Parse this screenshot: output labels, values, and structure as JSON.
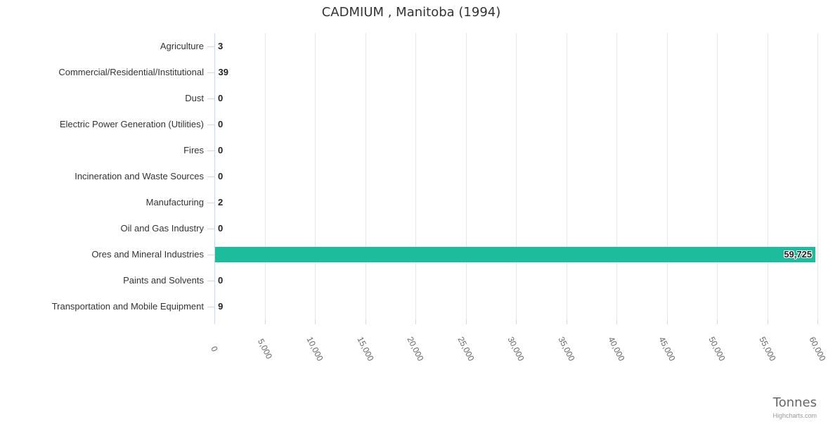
{
  "credits": "Highcharts.com",
  "chart_data": {
    "type": "bar",
    "orientation": "horizontal",
    "title": "CADMIUM , Manitoba (1994)",
    "categories": [
      "Agriculture",
      "Commercial/Residential/Institutional",
      "Dust",
      "Electric Power Generation (Utilities)",
      "Fires",
      "Incineration and Waste Sources",
      "Manufacturing",
      "Oil and Gas Industry",
      "Ores and Mineral Industries",
      "Paints and Solvents",
      "Transportation and Mobile Equipment"
    ],
    "values": [
      3,
      39,
      0,
      0,
      0,
      0,
      2,
      0,
      59725,
      0,
      9
    ],
    "value_labels": [
      "3",
      "39",
      "0",
      "0",
      "0",
      "0",
      "2",
      "0",
      "59,725",
      "0",
      "9"
    ],
    "axis_title": "Tonnes",
    "xlim": [
      0,
      60000
    ],
    "tick_interval": 5000,
    "tick_labels": [
      "0",
      "5,000",
      "10,000",
      "15,000",
      "20,000",
      "25,000",
      "30,000",
      "35,000",
      "40,000",
      "45,000",
      "50,000",
      "55,000",
      "60,000"
    ],
    "grid": true,
    "legend": false,
    "bar_color": "#1dbc9c",
    "colors": {
      "title": "#333333",
      "category_label": "#333333",
      "data_label": "#222222",
      "axis_line": "#ccd6eb",
      "gridline": "#e6e6e6",
      "tick_label": "#666666",
      "axis_title": "#666666",
      "credits": "#999999"
    }
  }
}
